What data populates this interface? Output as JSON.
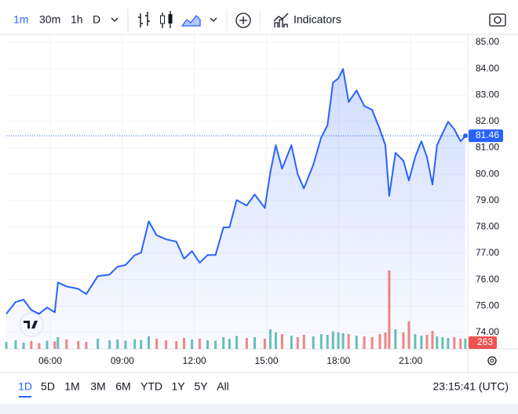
{
  "toolbar": {
    "intervals": [
      "1m",
      "30m",
      "1h",
      "D"
    ],
    "indicators": "Indicators"
  },
  "chart_data": {
    "type": "area",
    "x": [
      4.17,
      4.56,
      4.89,
      5.21,
      5.54,
      5.87,
      6.19,
      6.32,
      6.68,
      7.17,
      7.5,
      7.98,
      8.47,
      8.8,
      9.13,
      9.52,
      9.78,
      10.1,
      10.43,
      10.82,
      11.25,
      11.57,
      11.9,
      12.22,
      12.55,
      12.88,
      13.21,
      13.46,
      13.76,
      14.18,
      14.51,
      14.93,
      15.16,
      15.39,
      15.65,
      16.04,
      16.3,
      16.56,
      16.95,
      17.28,
      17.54,
      17.77,
      17.99,
      18.19,
      18.42,
      18.75,
      19.07,
      19.4,
      19.72,
      19.95,
      20.11,
      20.37,
      20.7,
      20.93,
      21.19,
      21.45,
      21.68,
      21.91,
      22.1,
      22.33,
      22.56,
      22.82,
      23.08,
      23.28
    ],
    "series": [
      {
        "color": "#2962ff",
        "values": [
          74.7,
          75.15,
          75.24,
          74.85,
          74.7,
          74.94,
          74.76,
          75.89,
          75.74,
          75.65,
          75.45,
          76.13,
          76.19,
          76.49,
          76.55,
          76.93,
          77.02,
          78.21,
          77.68,
          77.53,
          77.44,
          76.79,
          77.08,
          76.64,
          76.93,
          76.93,
          77.98,
          77.98,
          79.02,
          78.81,
          79.23,
          78.72,
          80.06,
          81.1,
          80.21,
          81.1,
          80.0,
          79.46,
          80.36,
          81.4,
          81.85,
          83.48,
          83.63,
          83.99,
          82.74,
          83.18,
          82.59,
          82.44,
          81.7,
          81.1,
          79.17,
          80.81,
          80.51,
          79.76,
          80.65,
          81.25,
          80.65,
          79.61,
          81.1,
          81.55,
          81.99,
          81.7,
          81.25,
          81.46
        ]
      },
      {
        "name": "Volume",
        "up_color": "#26a69a",
        "down_color": "#ef5350",
        "values": [
          180,
          220,
          160,
          200,
          150,
          210,
          190,
          300,
          240,
          200,
          180,
          260,
          220,
          240,
          210,
          250,
          230,
          320,
          260,
          220,
          200,
          280,
          240,
          260,
          220,
          210,
          300,
          260,
          330,
          280,
          300,
          260,
          500,
          420,
          380,
          340,
          300,
          360,
          320,
          380,
          360,
          450,
          420,
          400,
          380,
          340,
          320,
          300,
          380,
          420,
          2000,
          500,
          420,
          700,
          380,
          340,
          360,
          460,
          320,
          300,
          280,
          300,
          260,
          263
        ]
      }
    ],
    "last_price": {
      "value": 81.46,
      "label": "81.46"
    },
    "last_volume": 263,
    "ylim": [
      73.37,
      85.27
    ],
    "yticks": [
      {
        "value": 74,
        "label": "74.00"
      },
      {
        "value": 75,
        "label": "75.00"
      },
      {
        "value": 76,
        "label": "76.00"
      },
      {
        "value": 77,
        "label": "77.00"
      },
      {
        "value": 78,
        "label": "78.00"
      },
      {
        "value": 79,
        "label": "79.00"
      },
      {
        "value": 80,
        "label": "80.00"
      },
      {
        "value": 81,
        "label": "81.00"
      },
      {
        "value": 82,
        "label": "82.00"
      },
      {
        "value": 83,
        "label": "83.00"
      },
      {
        "value": 84,
        "label": "84.00"
      },
      {
        "value": 85,
        "label": "85.00"
      }
    ],
    "xlim": [
      4.17,
      23.38
    ],
    "xticks": [
      {
        "value": 6,
        "label": "06:00"
      },
      {
        "value": 9,
        "label": "09:00"
      },
      {
        "value": 12,
        "label": "12:00"
      },
      {
        "value": 15,
        "label": "15:00"
      },
      {
        "value": 18,
        "label": "18:00"
      },
      {
        "value": 21,
        "label": "21:00"
      }
    ],
    "volume_lim": [
      0,
      8000
    ],
    "grid": true
  },
  "footer": {
    "ranges": [
      "1D",
      "5D",
      "1M",
      "3M",
      "6M",
      "YTD",
      "1Y",
      "5Y",
      "All"
    ],
    "clock": "23:15:41 (UTC)"
  }
}
